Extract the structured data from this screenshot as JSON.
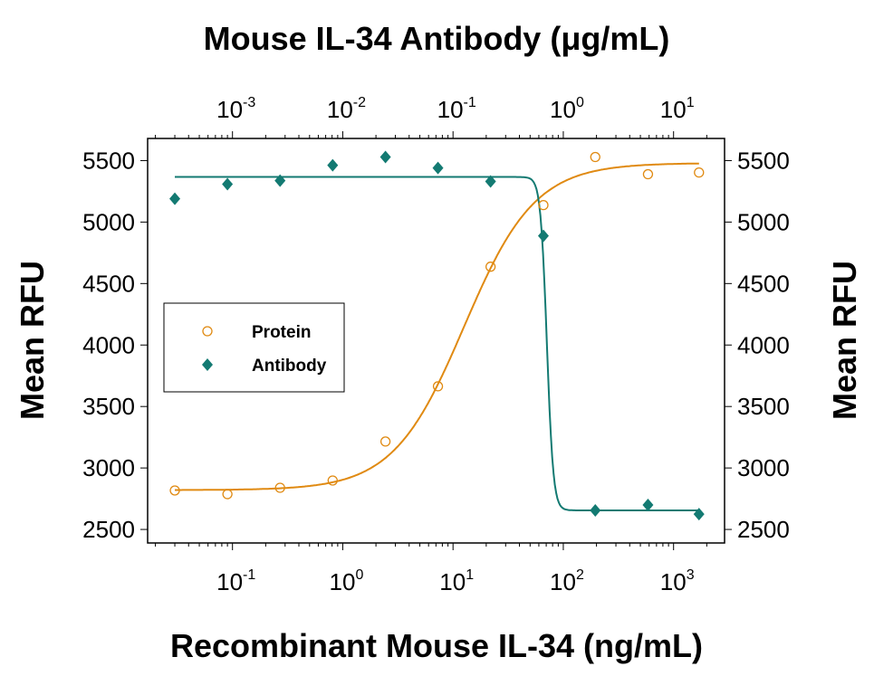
{
  "chart_data": {
    "type": "scatter",
    "title": "Mouse IL-34 Antibody (μg/mL)",
    "xlabel": "Recombinant Mouse IL-34 (ng/mL)",
    "x2label": "Mouse IL-34 Antibody (μg/mL)",
    "ylabel": "Mean RFU",
    "y2label": "Mean RFU",
    "xscale": "log",
    "xlim": [
      0.017,
      2900
    ],
    "x2lim": [
      0.00017,
      29
    ],
    "ylim": [
      2390,
      5680
    ],
    "xticks": [
      {
        "base": "10",
        "exp": "-1"
      },
      {
        "base": "10",
        "exp": "0"
      },
      {
        "base": "10",
        "exp": "1"
      },
      {
        "base": "10",
        "exp": "2"
      },
      {
        "base": "10",
        "exp": "3"
      }
    ],
    "x2ticks": [
      {
        "base": "10",
        "exp": "-3"
      },
      {
        "base": "10",
        "exp": "-2"
      },
      {
        "base": "10",
        "exp": "-1"
      },
      {
        "base": "10",
        "exp": "0"
      },
      {
        "base": "10",
        "exp": "1"
      }
    ],
    "yticks": [
      "2500",
      "3000",
      "3500",
      "4000",
      "4500",
      "5000",
      "5500"
    ],
    "grid": false,
    "legend_placement": "center-left",
    "series": [
      {
        "name": "Protein",
        "axis": "bottom",
        "marker": "open-circle",
        "color": "#e08a12",
        "x": [
          0.03,
          0.09,
          0.27,
          0.81,
          2.44,
          7.3,
          21.9,
          66,
          195,
          586,
          1700
        ],
        "y": [
          2817,
          2787,
          2839,
          2898,
          3215,
          3664,
          4637,
          5138,
          5529,
          5389,
          5403
        ],
        "fit": {
          "model": "4PL",
          "bottom": 2820,
          "top": 5480,
          "ec50": 12.6,
          "hill": 1.35
        }
      },
      {
        "name": "Antibody",
        "axis": "top",
        "marker": "filled-diamond",
        "color": "#137a72",
        "x": [
          0.0003,
          0.0009,
          0.0027,
          0.0081,
          0.0244,
          0.073,
          0.219,
          0.66,
          1.95,
          5.86,
          17
        ],
        "y": [
          5190,
          5308,
          5337,
          5462,
          5529,
          5440,
          5330,
          4888,
          2655,
          2699,
          2625
        ],
        "fit": {
          "model": "4PL",
          "bottom": 2655,
          "top": 5367,
          "ec50": 0.71,
          "hill": -15
        }
      }
    ]
  }
}
